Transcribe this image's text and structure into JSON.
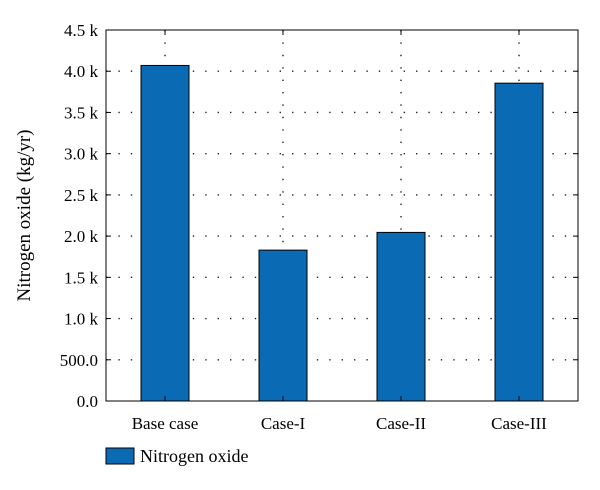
{
  "chart_data": {
    "type": "bar",
    "categories": [
      "Base case",
      "Case-I",
      "Case-II",
      "Case-III"
    ],
    "series": [
      {
        "name": "Nitrogen oxide",
        "values": [
          4070,
          1830,
          2045,
          3855
        ]
      }
    ],
    "ylabel": "Nitrogen oxide (kg/yr)",
    "ylim": [
      0,
      4500
    ],
    "yticks": [
      0,
      500,
      1000,
      1500,
      2000,
      2500,
      3000,
      3500,
      4000,
      4500
    ],
    "ytick_labels": [
      "0.0",
      "500.0",
      "1.0 k",
      "1.5 k",
      "2.0 k",
      "2.5 k",
      "3.0 k",
      "3.5 k",
      "4.0 k",
      "4.5 k"
    ],
    "grid": true,
    "legend": "bottom-left",
    "bar_color": "#0a6ab4"
  }
}
